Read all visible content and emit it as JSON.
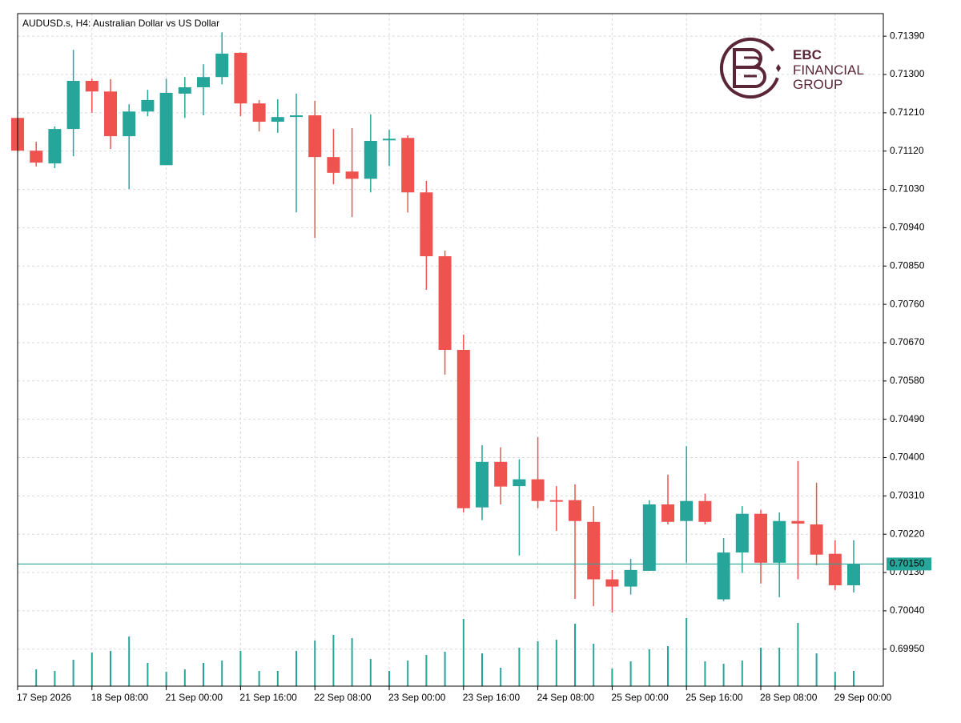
{
  "chart_data": {
    "type": "candlestick",
    "title": "AUDUSD.s, H4:  Australian Dollar vs US Dollar",
    "categories": [
      "17 Sep 2026",
      null,
      null,
      null,
      "18 Sep 08:00",
      null,
      null,
      null,
      "21 Sep 00:00",
      null,
      null,
      null,
      "21 Sep 16:00",
      null,
      null,
      null,
      "22 Sep 08:00",
      null,
      null,
      null,
      "23 Sep 00:00",
      null,
      null,
      null,
      "23 Sep 16:00",
      null,
      null,
      null,
      "24 Sep 08:00",
      null,
      null,
      null,
      "25 Sep 00:00",
      null,
      null,
      null,
      "25 Sep 16:00",
      null,
      null,
      null,
      "28 Sep 08:00",
      null,
      null,
      null,
      "29 Sep 00:00",
      null
    ],
    "open": [
      0.71198,
      0.71121,
      0.71091,
      0.71172,
      0.71285,
      0.7126,
      0.71155,
      0.71213,
      0.71087,
      0.71255,
      0.7127,
      0.71294,
      0.71351,
      0.71232,
      0.71189,
      0.71202,
      0.71204,
      0.71106,
      0.71072,
      0.71055,
      0.71146,
      0.71151,
      0.71023,
      0.70873,
      0.70653,
      0.70283,
      0.7039,
      0.70333,
      0.70349,
      0.703,
      0.703,
      0.70249,
      0.70114,
      0.70097,
      0.70134,
      0.7029,
      0.70251,
      0.70298,
      0.70067,
      0.70177,
      0.70268,
      0.70153,
      0.70251,
      0.70243,
      0.70174,
      0.701
    ],
    "high": [
      0.71198,
      0.71142,
      0.71178,
      0.71358,
      0.7129,
      0.71289,
      0.7123,
      0.71264,
      0.7129,
      0.71294,
      0.71324,
      0.71399,
      0.71352,
      0.7124,
      0.71242,
      0.71255,
      0.71238,
      0.71172,
      0.71174,
      0.71206,
      0.7117,
      0.71157,
      0.7105,
      0.70886,
      0.70689,
      0.70429,
      0.70424,
      0.70396,
      0.70448,
      0.70333,
      0.70337,
      0.70286,
      0.70136,
      0.70162,
      0.703,
      0.7036,
      0.70427,
      0.70315,
      0.70211,
      0.70286,
      0.70277,
      0.70271,
      0.70392,
      0.70341,
      0.70206,
      0.70206
    ],
    "low": [
      0.71121,
      0.71084,
      0.7108,
      0.71108,
      0.7121,
      0.71125,
      0.71031,
      0.71202,
      0.71087,
      0.71198,
      0.71204,
      0.71277,
      0.71202,
      0.71166,
      0.71163,
      0.70976,
      0.70916,
      0.71042,
      0.70965,
      0.71023,
      0.71085,
      0.70976,
      0.70794,
      0.70595,
      0.70271,
      0.70253,
      0.7029,
      0.7017,
      0.70281,
      0.70228,
      0.70068,
      0.70051,
      0.70036,
      0.70078,
      0.70134,
      0.70243,
      0.70153,
      0.70243,
      0.70063,
      0.70129,
      0.70104,
      0.70072,
      0.70114,
      0.70147,
      0.70089,
      0.70083
    ],
    "close": [
      0.71121,
      0.71093,
      0.71172,
      0.71285,
      0.7126,
      0.71155,
      0.71213,
      0.7124,
      0.71257,
      0.7127,
      0.71294,
      0.71349,
      0.71232,
      0.71189,
      0.712,
      0.71204,
      0.71106,
      0.71069,
      0.71055,
      0.71144,
      0.71149,
      0.71023,
      0.70873,
      0.70653,
      0.70281,
      0.7039,
      0.70332,
      0.70349,
      0.70298,
      0.70298,
      0.70251,
      0.70114,
      0.70097,
      0.70136,
      0.7029,
      0.70249,
      0.70298,
      0.70249,
      0.70177,
      0.70268,
      0.70153,
      0.70251,
      0.70245,
      0.70172,
      0.701,
      0.7015
    ],
    "volume": [
      null,
      21,
      19,
      33,
      42,
      44,
      62,
      29,
      18,
      21,
      29,
      32,
      44,
      19,
      19,
      44,
      57,
      64,
      60,
      34,
      19,
      32,
      39,
      43,
      84,
      41,
      23,
      48,
      56,
      58,
      78,
      53,
      22,
      31,
      46,
      50,
      85,
      31,
      28,
      32,
      48,
      48,
      79,
      41,
      18,
      19
    ],
    "volume_ylim": [
      0,
      100
    ],
    "volume_color": "#26a69a",
    "up_color": "#26a69a",
    "down_color": "#ef5350",
    "ylim": [
      0.69863,
      0.71443
    ],
    "yticks": [
      {
        "value": 0.7139,
        "label": "0.71390"
      },
      {
        "value": 0.713,
        "label": "0.71300"
      },
      {
        "value": 0.7121,
        "label": "0.71210"
      },
      {
        "value": 0.7112,
        "label": "0.71120"
      },
      {
        "value": 0.7103,
        "label": "0.71030"
      },
      {
        "value": 0.7094,
        "label": "0.70940"
      },
      {
        "value": 0.7085,
        "label": "0.70850"
      },
      {
        "value": 0.7076,
        "label": "0.70760"
      },
      {
        "value": 0.7067,
        "label": "0.70670"
      },
      {
        "value": 0.7058,
        "label": "0.70580"
      },
      {
        "value": 0.7049,
        "label": "0.70490"
      },
      {
        "value": 0.704,
        "label": "0.70400"
      },
      {
        "value": 0.7031,
        "label": "0.70310"
      },
      {
        "value": 0.7022,
        "label": "0.70220"
      },
      {
        "value": 0.7013,
        "label": "0.70130"
      },
      {
        "value": 0.7004,
        "label": "0.70040"
      },
      {
        "value": 0.6995,
        "label": "0.69950"
      }
    ],
    "current_price": {
      "value": 0.7015,
      "label": "0.70150"
    },
    "current_price_color": "#26a69a",
    "grid": true
  },
  "logo": {
    "line1": "EBC",
    "line2": "FINANCIAL",
    "line3": "GROUP"
  }
}
